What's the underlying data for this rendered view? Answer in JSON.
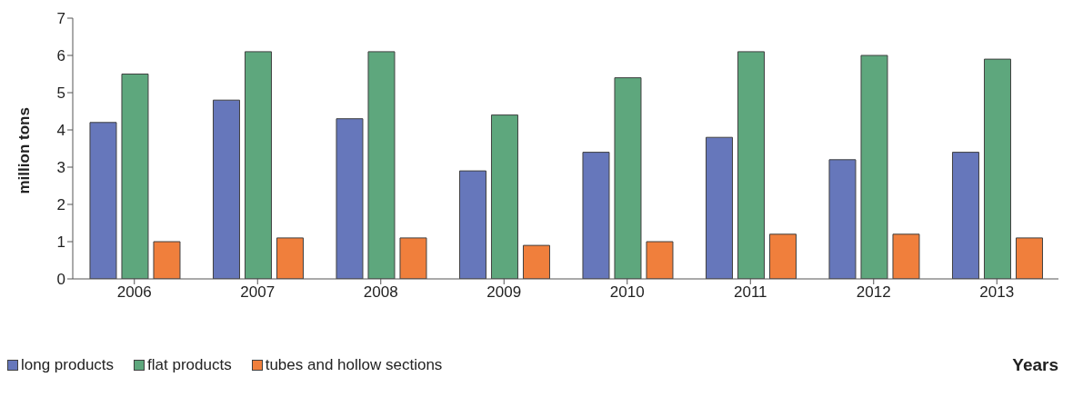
{
  "chart_data": {
    "type": "bar",
    "ylabel": "million tons",
    "xlabel": "Years",
    "categories": [
      "2006",
      "2007",
      "2008",
      "2009",
      "2010",
      "2011",
      "2012",
      "2013"
    ],
    "series": [
      {
        "name": "long products",
        "color": "#6677bb",
        "values": [
          4.2,
          4.8,
          4.3,
          2.9,
          3.4,
          3.8,
          3.2,
          3.4
        ]
      },
      {
        "name": "flat products",
        "color": "#5ea77d",
        "values": [
          5.5,
          6.1,
          6.1,
          4.4,
          5.4,
          6.1,
          6.0,
          5.9
        ]
      },
      {
        "name": "tubes and hollow sections",
        "color": "#f07f3c",
        "values": [
          1.0,
          1.1,
          1.1,
          0.9,
          1.0,
          1.2,
          1.2,
          1.1
        ]
      }
    ],
    "ylim": [
      0,
      7
    ],
    "yticks": [
      0,
      1,
      2,
      3,
      4,
      5,
      6,
      7
    ],
    "grid": false,
    "legend": "bottom left"
  }
}
